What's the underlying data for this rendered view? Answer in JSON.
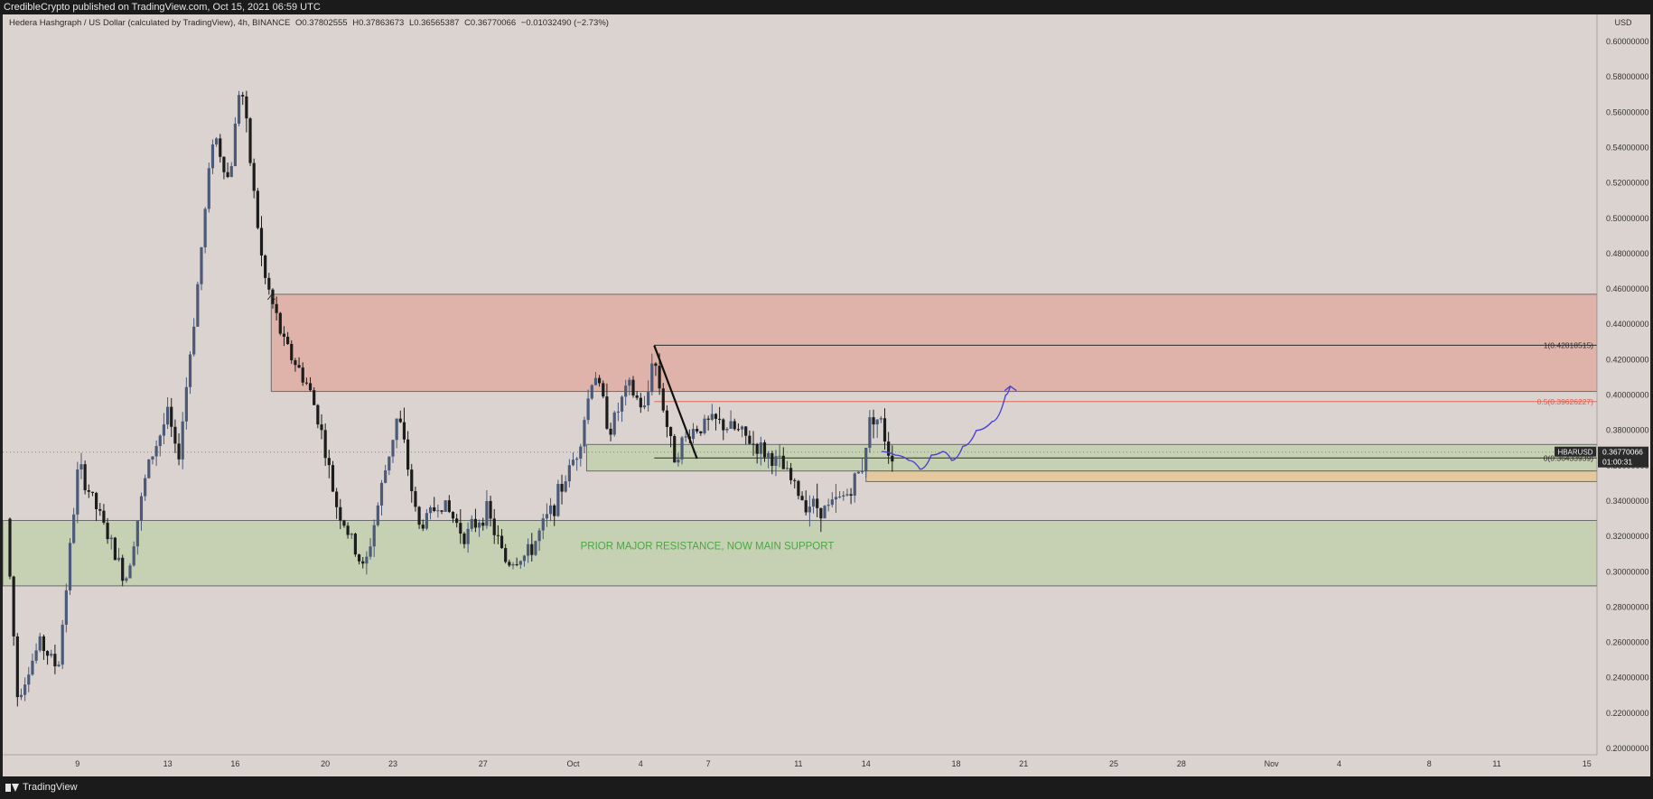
{
  "header": {
    "published": "CredibleCrypto published on TradingView.com, Oct 15, 2021 06:59 UTC"
  },
  "footer": {
    "brand": "TradingView"
  },
  "legend": {
    "symbol": "Hedera Hashgraph / US Dollar (calculated by TradingView), 4h, BINANCE",
    "open": "O0.37802555",
    "high": "H0.37863673",
    "low": "L0.36565387",
    "close": "C0.36770066",
    "change": "−0.01032490 (−2.73%)"
  },
  "colors": {
    "background": "#dbd3cf",
    "candle_up": "#4a5a78",
    "candle_down": "#1c1c1c",
    "resistance_zone": "#e0b3aa",
    "support_zone": "#c6d1b3",
    "secondary_zone": "#e3c9a0",
    "projection": "#4a3fd6",
    "fib_mid": "#e05a4a",
    "annotation_text": "#4aa842"
  },
  "chart_data": {
    "type": "candlestick",
    "currency": "USD",
    "ylim": [
      0.19,
      0.61
    ],
    "y_ticks": [
      "0.60000000",
      "0.58000000",
      "0.56000000",
      "0.54000000",
      "0.52000000",
      "0.50000000",
      "0.48000000",
      "0.46000000",
      "0.44000000",
      "0.42000000",
      "0.40000000",
      "0.38000000",
      "0.36000000",
      "0.34000000",
      "0.32000000",
      "0.30000000",
      "0.28000000",
      "0.26000000",
      "0.24000000",
      "0.22000000",
      "0.20000000"
    ],
    "y_tick_values": [
      0.6,
      0.58,
      0.56,
      0.54,
      0.52,
      0.5,
      0.48,
      0.46,
      0.44,
      0.42,
      0.4,
      0.38,
      0.36,
      0.34,
      0.32,
      0.3,
      0.28,
      0.26,
      0.24,
      0.22,
      0.2
    ],
    "x_ticks": [
      "9",
      "13",
      "16",
      "20",
      "23",
      "27",
      "Oct",
      "4",
      "7",
      "11",
      "14",
      "18",
      "21",
      "25",
      "28",
      "Nov",
      "4",
      "8",
      "11",
      "15"
    ],
    "x_tick_days": [
      9,
      13,
      16,
      20,
      23,
      27,
      31,
      34,
      37,
      41,
      44,
      48,
      51,
      55,
      58,
      62,
      65,
      69,
      72,
      76
    ],
    "x_start_day": 6,
    "x_end_day": 77.5,
    "price_path": [
      [
        6.0,
        0.33
      ],
      [
        6.5,
        0.23
      ],
      [
        7.5,
        0.26
      ],
      [
        8.3,
        0.245
      ],
      [
        9.2,
        0.36
      ],
      [
        10.2,
        0.33
      ],
      [
        11.3,
        0.295
      ],
      [
        12.3,
        0.36
      ],
      [
        13.2,
        0.39
      ],
      [
        13.6,
        0.36
      ],
      [
        14.4,
        0.45
      ],
      [
        15.2,
        0.55
      ],
      [
        15.9,
        0.52
      ],
      [
        16.4,
        0.58
      ],
      [
        17.4,
        0.47
      ],
      [
        18.3,
        0.43
      ],
      [
        19.4,
        0.405
      ],
      [
        19.9,
        0.385
      ],
      [
        20.6,
        0.34
      ],
      [
        21.4,
        0.315
      ],
      [
        21.9,
        0.3
      ],
      [
        22.7,
        0.35
      ],
      [
        23.4,
        0.39
      ],
      [
        24.3,
        0.325
      ],
      [
        25.3,
        0.34
      ],
      [
        26.4,
        0.32
      ],
      [
        27.3,
        0.335
      ],
      [
        28.2,
        0.305
      ],
      [
        29.2,
        0.31
      ],
      [
        30.4,
        0.34
      ],
      [
        31.4,
        0.37
      ],
      [
        32.1,
        0.415
      ],
      [
        32.8,
        0.38
      ],
      [
        33.6,
        0.405
      ],
      [
        34.4,
        0.39
      ],
      [
        34.7,
        0.425
      ],
      [
        35.6,
        0.365
      ],
      [
        36.4,
        0.38
      ],
      [
        37.4,
        0.385
      ],
      [
        38.4,
        0.38
      ],
      [
        39.4,
        0.37
      ],
      [
        40.4,
        0.36
      ],
      [
        41.4,
        0.34
      ],
      [
        42.4,
        0.335
      ],
      [
        43.4,
        0.345
      ],
      [
        44.0,
        0.36
      ],
      [
        44.4,
        0.39
      ],
      [
        44.8,
        0.385
      ],
      [
        45.2,
        0.367
      ]
    ],
    "resistance_zone": {
      "low": 0.402,
      "high": 0.457,
      "start_day": 17.6
    },
    "upper_support_zone": {
      "low": 0.357,
      "high": 0.372,
      "start_day": 31.6
    },
    "secondary_zone": {
      "low": 0.351,
      "high": 0.357,
      "start_day": 44.0
    },
    "main_support_zone": {
      "low": 0.292,
      "high": 0.329,
      "start_day": 6.0,
      "label": "PRIOR MAJOR RESISTANCE, NOW MAIN SUPPORT"
    },
    "fib_levels": [
      {
        "label": "1(0.42818515)",
        "value": 0.42818515,
        "start_day": 34.6
      },
      {
        "label": "0.5(0.39626227)",
        "value": 0.39626227,
        "start_day": 34.6
      },
      {
        "label": "0(0.36433939)",
        "value": 0.36433939,
        "start_day": 34.6
      }
    ],
    "trend_line": {
      "from": [
        34.6,
        0.428
      ],
      "to": [
        36.5,
        0.364
      ]
    },
    "projection_path": [
      [
        44.7,
        0.368
      ],
      [
        45.3,
        0.366
      ],
      [
        45.9,
        0.363
      ],
      [
        46.4,
        0.358
      ],
      [
        46.9,
        0.366
      ],
      [
        47.4,
        0.368
      ],
      [
        47.8,
        0.363
      ],
      [
        48.3,
        0.371
      ],
      [
        48.9,
        0.38
      ],
      [
        49.6,
        0.385
      ],
      [
        50.2,
        0.4
      ],
      [
        50.4,
        0.405
      ]
    ],
    "last_price": {
      "symbol": "HBARUSD",
      "value": "0.36770066",
      "countdown": "01:00:31",
      "numeric": 0.36770066
    }
  }
}
